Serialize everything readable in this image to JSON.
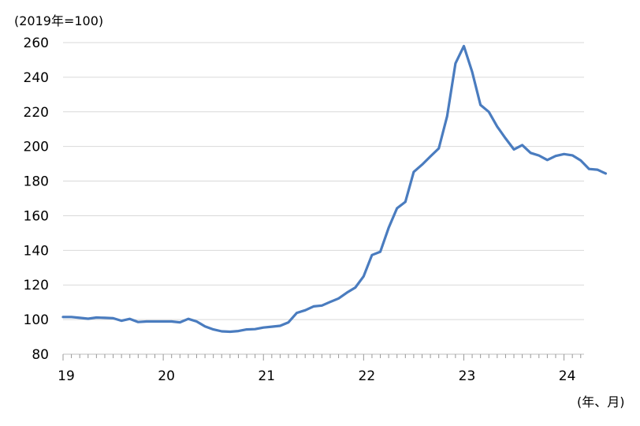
{
  "chart_data": {
    "type": "line",
    "y_unit_label": "(2019年=100)",
    "x_unit_label": "(年、月)",
    "ylim": [
      80,
      260
    ],
    "yticks": [
      80,
      100,
      120,
      140,
      160,
      180,
      200,
      220,
      240,
      260
    ],
    "xlim": [
      2019.0,
      2024.2
    ],
    "xticks": [
      {
        "pos": 2019,
        "label": "19"
      },
      {
        "pos": 2020,
        "label": "20"
      },
      {
        "pos": 2021,
        "label": "21"
      },
      {
        "pos": 2022,
        "label": "22"
      },
      {
        "pos": 2023,
        "label": "23"
      },
      {
        "pos": 2024,
        "label": "24"
      }
    ],
    "grid": true,
    "line_color": "#4a7cbf",
    "series": [
      {
        "name": "",
        "x_start": "2019-01",
        "freq": "monthly",
        "values": [
          101.5,
          101.5,
          101.0,
          100.5,
          101.2,
          101.0,
          100.8,
          99.3,
          100.4,
          98.6,
          98.9,
          98.9,
          98.9,
          98.9,
          98.4,
          100.4,
          98.9,
          96.1,
          94.3,
          93.2,
          93.0,
          93.4,
          94.3,
          94.5,
          95.4,
          95.9,
          96.4,
          98.4,
          103.9,
          105.4,
          107.6,
          108.1,
          110.2,
          112.2,
          115.6,
          118.5,
          125.0,
          137.3,
          139.2,
          153.0,
          164.3,
          168.0,
          185.3,
          189.5,
          194.3,
          198.9,
          217.5,
          248.0,
          258.0,
          243.0,
          224.0,
          220.0,
          211.5,
          204.7,
          198.3,
          200.8,
          196.3,
          194.8,
          192.2,
          194.5,
          195.6,
          194.9,
          191.9,
          187.0,
          186.6,
          184.4
        ]
      }
    ]
  }
}
